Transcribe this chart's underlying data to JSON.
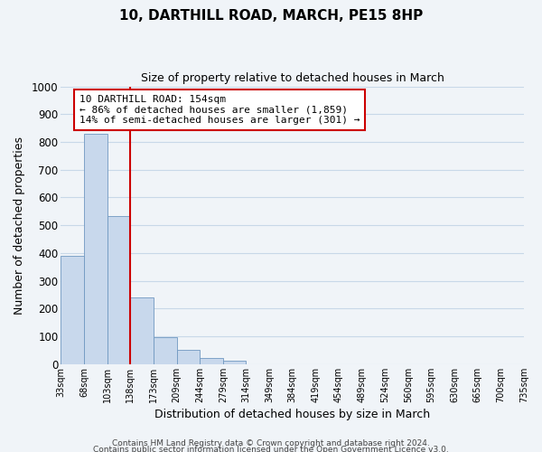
{
  "title": "10, DARTHILL ROAD, MARCH, PE15 8HP",
  "subtitle": "Size of property relative to detached houses in March",
  "xlabel": "Distribution of detached houses by size in March",
  "ylabel": "Number of detached properties",
  "bar_color": "#c8d8ec",
  "bar_edge_color": "#7098c0",
  "bins": [
    "33sqm",
    "68sqm",
    "103sqm",
    "138sqm",
    "173sqm",
    "209sqm",
    "244sqm",
    "279sqm",
    "314sqm",
    "349sqm",
    "384sqm",
    "419sqm",
    "454sqm",
    "489sqm",
    "524sqm",
    "560sqm",
    "595sqm",
    "630sqm",
    "665sqm",
    "700sqm",
    "735sqm"
  ],
  "values": [
    390,
    828,
    533,
    241,
    97,
    52,
    22,
    14,
    0,
    0,
    0,
    0,
    0,
    0,
    0,
    0,
    0,
    0,
    0,
    0
  ],
  "ylim": [
    0,
    1000
  ],
  "yticks": [
    0,
    100,
    200,
    300,
    400,
    500,
    600,
    700,
    800,
    900,
    1000
  ],
  "annotation_title": "10 DARTHILL ROAD: 154sqm",
  "annotation_line1": "← 86% of detached houses are smaller (1,859)",
  "annotation_line2": "14% of semi-detached houses are larger (301) →",
  "annotation_box_color": "#ffffff",
  "annotation_box_edge": "#cc0000",
  "property_line_color": "#cc0000",
  "grid_color": "#c8d8e8",
  "footer1": "Contains HM Land Registry data © Crown copyright and database right 2024.",
  "footer2": "Contains public sector information licensed under the Open Government Licence v3.0.",
  "background_color": "#f0f4f8"
}
